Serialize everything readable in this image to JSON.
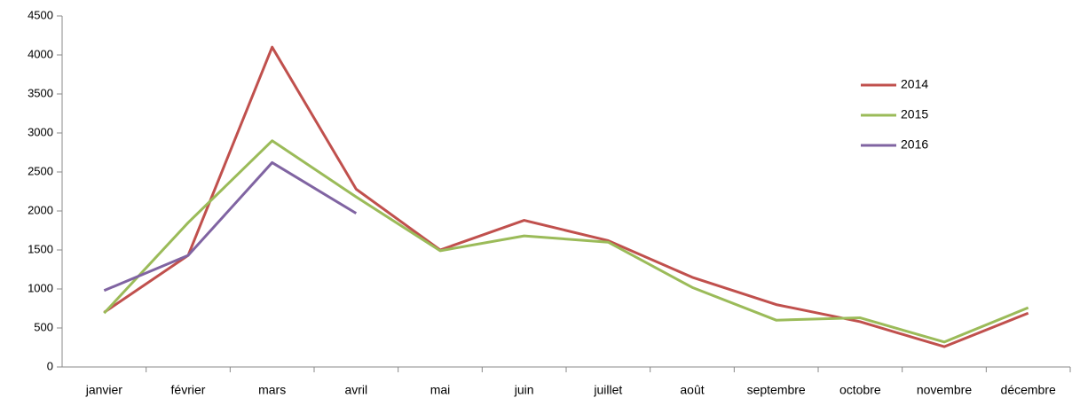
{
  "chart_data": {
    "type": "line",
    "categories": [
      "janvier",
      "février",
      "mars",
      "avril",
      "mai",
      "juin",
      "juillet",
      "août",
      "septembre",
      "octobre",
      "novembre",
      "décembre"
    ],
    "series": [
      {
        "name": "2014",
        "color": "#c0504d",
        "values": [
          700,
          1430,
          4100,
          2280,
          1500,
          1880,
          1620,
          1150,
          800,
          580,
          260,
          690
        ]
      },
      {
        "name": "2015",
        "color": "#9bbb59",
        "values": [
          690,
          1850,
          2900,
          2180,
          1490,
          1680,
          1600,
          1020,
          600,
          630,
          320,
          760
        ]
      },
      {
        "name": "2016",
        "color": "#8064a2",
        "values": [
          980,
          1430,
          2620,
          1970,
          null,
          null,
          null,
          null,
          null,
          null,
          null,
          null
        ]
      }
    ],
    "ylim": [
      0,
      4500
    ],
    "yticks": [
      0,
      500,
      1000,
      1500,
      2000,
      2500,
      3000,
      3500,
      4000,
      4500
    ],
    "grid": false,
    "legend": "right"
  }
}
